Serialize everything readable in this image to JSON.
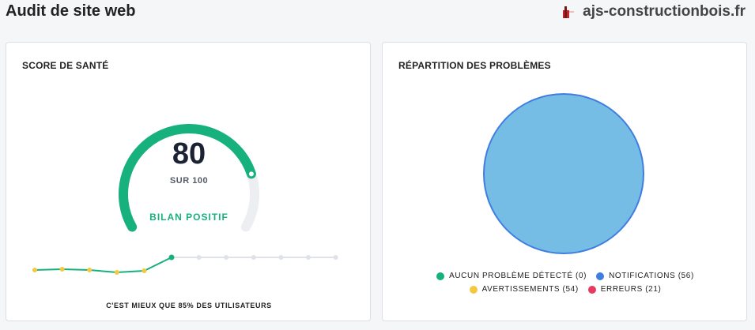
{
  "header": {
    "title": "Audit de site web",
    "site_icon": "flag-icon",
    "site_name": "ajs-constructionbois.fr"
  },
  "health": {
    "card_title": "SCORE DE SANTÉ",
    "score": "80",
    "score_value": 80,
    "score_max": 100,
    "score_sub": "SUR 100",
    "status": "BILAN POSITIF",
    "footnote": "C'EST MIEUX QUE 85% DES UTILISATEURS",
    "colors": {
      "good": "#16b17c",
      "track": "#eceef2",
      "point": "#f5c842"
    },
    "trend": [
      {
        "state": "past"
      },
      {
        "state": "past"
      },
      {
        "state": "past"
      },
      {
        "state": "past"
      },
      {
        "state": "past"
      },
      {
        "state": "current"
      },
      {
        "state": "future"
      },
      {
        "state": "future"
      },
      {
        "state": "future"
      },
      {
        "state": "future"
      },
      {
        "state": "future"
      },
      {
        "state": "future"
      }
    ]
  },
  "issues": {
    "card_title": "RÉPARTITION DES PROBLÈMES",
    "chart_data": {
      "type": "pie",
      "slices": [
        {
          "label": "AUCUN PROBLÈME DÉTECTÉ",
          "value": 0,
          "color": "#16b17c"
        },
        {
          "label": "NOTIFICATIONS",
          "value": 56,
          "color": "#3f7ee0"
        },
        {
          "label": "AVERTISSEMENTS",
          "value": 54,
          "color": "#f5c842"
        },
        {
          "label": "ERREURS",
          "value": 21,
          "color": "#e8395e"
        }
      ],
      "pie_fill": "#76bde5",
      "pie_edge": "#3f7ee0"
    },
    "legend": [
      {
        "text": "AUCUN PROBLÈME DÉTECTÉ (0)",
        "color": "#16b17c"
      },
      {
        "text": "NOTIFICATIONS (56)",
        "color": "#3f7ee0"
      },
      {
        "text": "AVERTISSEMENTS (54)",
        "color": "#f5c842"
      },
      {
        "text": "ERREURS (21)",
        "color": "#e8395e"
      }
    ]
  }
}
